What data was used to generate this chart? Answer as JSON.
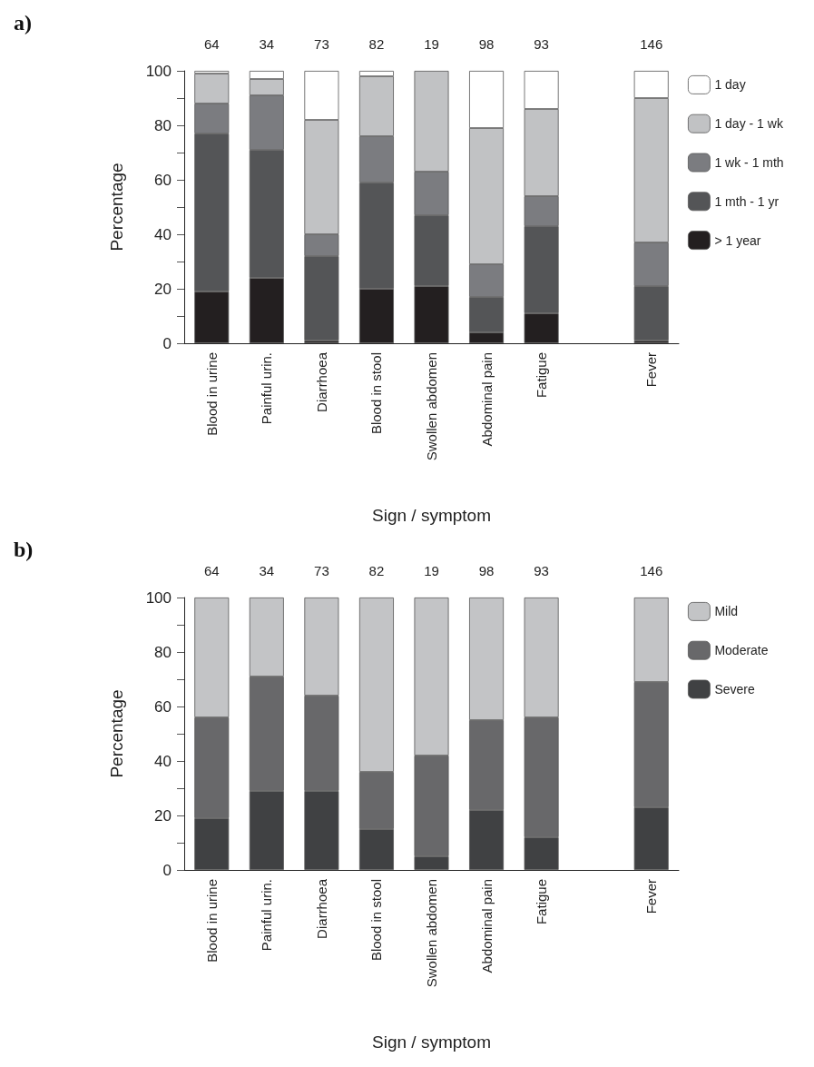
{
  "chart_data": [
    {
      "type": "bar",
      "title": "a)",
      "xlabel": "Sign / symptom",
      "ylabel": "Percentage",
      "stacked": true,
      "legend": "right",
      "grid": false,
      "categories": [
        "Blood in urine",
        "Painful urin.",
        "Diarrhoea",
        "Blood in stool",
        "Swollen abdomen",
        "Abdominal pain",
        "Fatigue",
        null,
        "Fever"
      ],
      "series": [
        {
          "name": "> 1 year",
          "color": "#231f20",
          "values": [
            19,
            24,
            1,
            20,
            21,
            4,
            11,
            null,
            1
          ]
        },
        {
          "name": "1 mth - 1 yr",
          "color": "#545557",
          "values": [
            58,
            47,
            31,
            39,
            26,
            13,
            32,
            null,
            20
          ]
        },
        {
          "name": "1 wk - 1 mth",
          "color": "#7b7c80",
          "values": [
            11,
            20,
            8,
            17,
            16,
            12,
            11,
            null,
            16
          ]
        },
        {
          "name": "1 day - 1 wk",
          "color": "#c1c2c4",
          "values": [
            11,
            6,
            42,
            22,
            37,
            50,
            32,
            null,
            53
          ]
        },
        {
          "name": "1 day",
          "color": "#ffffff",
          "values": [
            1,
            3,
            18,
            2,
            0,
            21,
            14,
            null,
            10
          ]
        }
      ],
      "ylim": [
        0,
        100
      ],
      "yticks": [
        0,
        {
          "value": 10,
          "label": null
        },
        20,
        {
          "value": 30,
          "label": null
        },
        40,
        {
          "value": 50,
          "label": null
        },
        60,
        {
          "value": 70,
          "label": null
        },
        80,
        {
          "value": 90,
          "label": null
        },
        100
      ],
      "annotations": [
        "64",
        "34",
        "73",
        "82",
        "19",
        "98",
        "93",
        "146"
      ]
    },
    {
      "type": "bar",
      "title": "b)",
      "xlabel": "Sign / symptom",
      "ylabel": "Percentage",
      "stacked": true,
      "legend": "right",
      "grid": false,
      "categories": [
        "Blood in urine",
        "Painful urin.",
        "Diarrhoea",
        "Blood in stool",
        "Swollen abdomen",
        "Abdominal pain",
        "Fatigue",
        null,
        "Fever"
      ],
      "series": [
        {
          "name": "Severe",
          "color": "#404143",
          "values": [
            19,
            29,
            29,
            15,
            5,
            22,
            12,
            null,
            23
          ]
        },
        {
          "name": "Moderate",
          "color": "#68686a",
          "values": [
            37,
            42,
            35,
            21,
            37,
            33,
            44,
            null,
            46
          ]
        },
        {
          "name": "Mild",
          "color": "#c3c4c6",
          "values": [
            44,
            29,
            36,
            64,
            58,
            45,
            44,
            null,
            31
          ]
        }
      ],
      "ylim": [
        0,
        100
      ],
      "yticks": [
        0,
        {
          "value": 10,
          "label": null
        },
        20,
        {
          "value": 30,
          "label": null
        },
        40,
        {
          "value": 50,
          "label": null
        },
        60,
        {
          "value": 70,
          "label": null
        },
        80,
        {
          "value": 90,
          "label": null
        },
        100
      ],
      "annotations": [
        "64",
        "34",
        "73",
        "82",
        "19",
        "98",
        "93",
        "146"
      ]
    }
  ]
}
